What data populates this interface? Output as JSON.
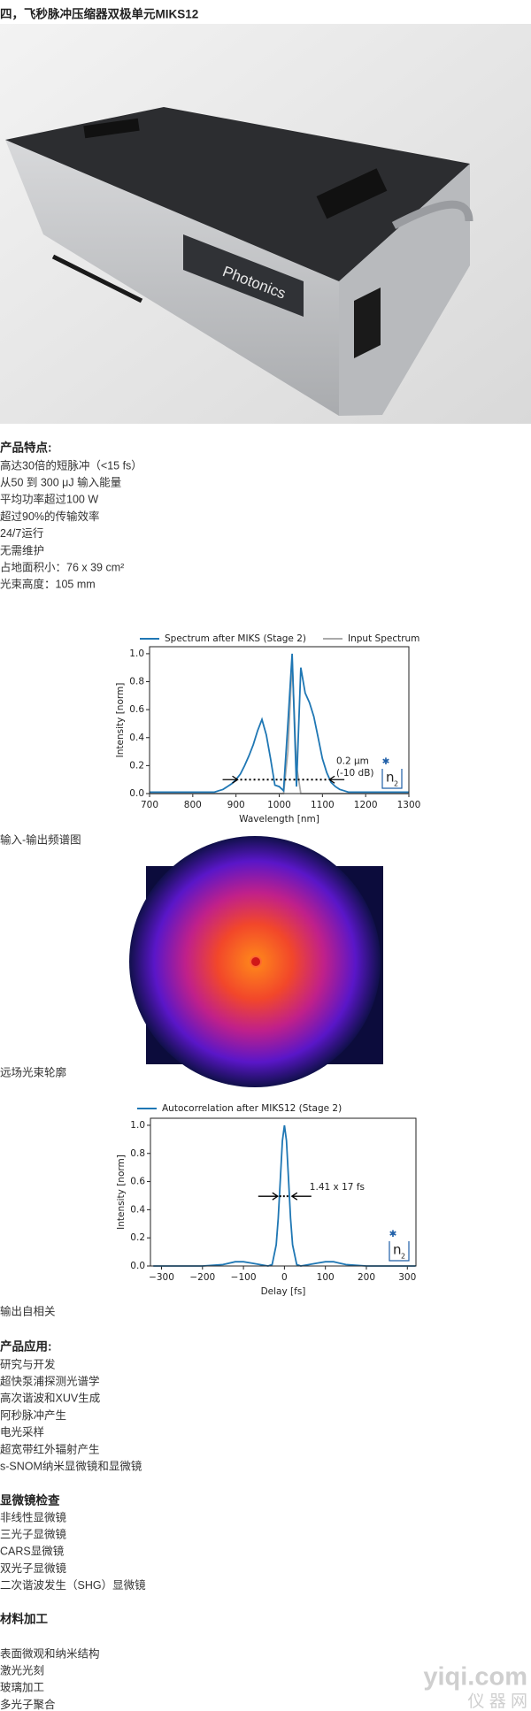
{
  "title": "四，飞秒脉冲压缩器双极单元MIKS12",
  "photo_label": "Photonics",
  "features": {
    "heading": "产品特点:",
    "items": [
      "高达30倍的短脉冲（<15 fs）",
      "从50 到 300 μJ 输入能量",
      "平均功率超过100 W",
      "超过90%的传输效率",
      "24/7运行",
      "无需维护",
      "占地面积小：76 x 39 cm²",
      "光束高度：105 mm"
    ]
  },
  "captions": [
    "输入-输出频谱图",
    "远场光束轮廓",
    "输出自相关"
  ],
  "applications": {
    "heading": "产品应用:",
    "items": [
      "研究与开发",
      "超快泵浦探测光谱学",
      "高次谐波和XUV生成",
      "阿秒脉冲产生",
      "电光采样",
      "超宽带红外辐射产生",
      "s-SNOM纳米显微镜和显微镜"
    ]
  },
  "microscopy": {
    "heading": "显微镜检查",
    "items": [
      "非线性显微镜",
      "三光子显微镜",
      "CARS显微镜",
      "双光子显微镜",
      "二次谐波发生（SHG）显微镜"
    ]
  },
  "materials": {
    "heading": "材料加工",
    "items": [
      "表面微观和纳米结构",
      "激光光刻",
      "玻璃加工",
      "多光子聚合"
    ]
  },
  "watermark": {
    "text": "yiqi.com",
    "sub": "仪 器 网"
  },
  "chart_data": [
    {
      "type": "line",
      "x_label": "Wavelength [nm]",
      "y_label": "Intensity [norm]",
      "x": [
        700,
        710,
        720,
        730,
        740,
        750,
        760,
        770,
        780,
        790,
        800,
        810,
        820,
        830,
        840,
        850,
        860,
        870,
        880,
        890,
        900,
        910,
        920,
        930,
        940,
        950,
        960,
        970,
        980,
        990,
        1000,
        1010,
        1020,
        1030,
        1040,
        1050,
        1060,
        1070,
        1080,
        1090,
        1100,
        1110,
        1120,
        1130,
        1140,
        1150,
        1160,
        1170,
        1180,
        1190,
        1200,
        1210,
        1220,
        1230,
        1240,
        1250,
        1260,
        1270,
        1280,
        1290,
        1300
      ],
      "series": [
        {
          "name": "Spectrum after MIKS (Stage 2)",
          "color": "#1f77b4",
          "values": [
            0.01,
            0.01,
            0.01,
            0.01,
            0.01,
            0.01,
            0.01,
            0.01,
            0.01,
            0.01,
            0.01,
            0.01,
            0.01,
            0.01,
            0.01,
            0.01,
            0.02,
            0.03,
            0.05,
            0.07,
            0.1,
            0.14,
            0.2,
            0.27,
            0.35,
            0.45,
            0.53,
            0.42,
            0.25,
            0.06,
            0.05,
            0.02,
            0.5,
            1.0,
            0.05,
            0.9,
            0.72,
            0.65,
            0.55,
            0.4,
            0.25,
            0.15,
            0.08,
            0.05,
            0.03,
            0.02,
            0.01,
            0.01,
            0.01,
            0.01,
            0.01,
            0.01,
            0.01,
            0.01,
            0.01,
            0.01,
            0.01,
            0.01,
            0.01,
            0.01,
            0.01
          ]
        },
        {
          "name": "Input Spectrum",
          "color": "#aaaaaa",
          "values": [
            0,
            0,
            0,
            0,
            0,
            0,
            0,
            0,
            0,
            0,
            0,
            0,
            0,
            0,
            0,
            0,
            0,
            0,
            0,
            0,
            0,
            0,
            0,
            0,
            0,
            0,
            0,
            0,
            0,
            0,
            0,
            0,
            0.3,
            0.95,
            0.2,
            0,
            0,
            0,
            0,
            0,
            0,
            0,
            0,
            0,
            0,
            0,
            0,
            0,
            0,
            0,
            0,
            0,
            0,
            0,
            0,
            0,
            0,
            0,
            0,
            0,
            0
          ]
        }
      ],
      "xlim": [
        700,
        1300
      ],
      "xticks": [
        700,
        800,
        900,
        1000,
        1100,
        1200,
        1300
      ],
      "ylim": [
        0,
        1.05
      ],
      "yticks": [
        {
          "value": 0,
          "label": "0.0"
        },
        0.2,
        0.4,
        0.6,
        0.8,
        {
          "value": 1,
          "label": "1.0"
        }
      ],
      "annotations": [
        "0.2 μm",
        "(-10 dB)"
      ],
      "logo": "n",
      "logo_sub": "2",
      "grid": false
    },
    {
      "type": "line",
      "x_label": "Delay [fs]",
      "y_label": "Intensity [norm]",
      "x": [
        -320,
        -300,
        -250,
        -200,
        -150,
        -120,
        -100,
        -80,
        -60,
        -40,
        -30,
        -20,
        -15,
        -10,
        -5,
        0,
        5,
        10,
        15,
        20,
        30,
        40,
        60,
        80,
        100,
        120,
        150,
        200,
        250,
        300,
        320
      ],
      "series": [
        {
          "name": "Autocorrelation after MIKS12 (Stage 2)",
          "color": "#1f77b4",
          "values": [
            0,
            0,
            0,
            0,
            0.01,
            0.03,
            0.03,
            0.02,
            0.01,
            0,
            0.01,
            0.15,
            0.34,
            0.62,
            0.89,
            1.0,
            0.89,
            0.62,
            0.34,
            0.15,
            0.01,
            0,
            0.01,
            0.02,
            0.03,
            0.03,
            0.01,
            0,
            0,
            0,
            0
          ]
        }
      ],
      "xlim": [
        -327,
        321
      ],
      "xticks": [
        {
          "value": -300,
          "label": "−300"
        },
        {
          "value": -200,
          "label": "−200"
        },
        {
          "value": -100,
          "label": "−100"
        },
        0,
        100,
        200,
        300
      ],
      "ylim": [
        0,
        1.05
      ],
      "yticks": [
        {
          "value": 0,
          "label": "0.0"
        },
        0.2,
        0.4,
        0.6,
        0.8,
        {
          "value": 1,
          "label": "1.0"
        }
      ],
      "annotations": [
        "1.41 x  17 fs"
      ],
      "logo": "n",
      "logo_sub": "2",
      "grid": false
    }
  ]
}
